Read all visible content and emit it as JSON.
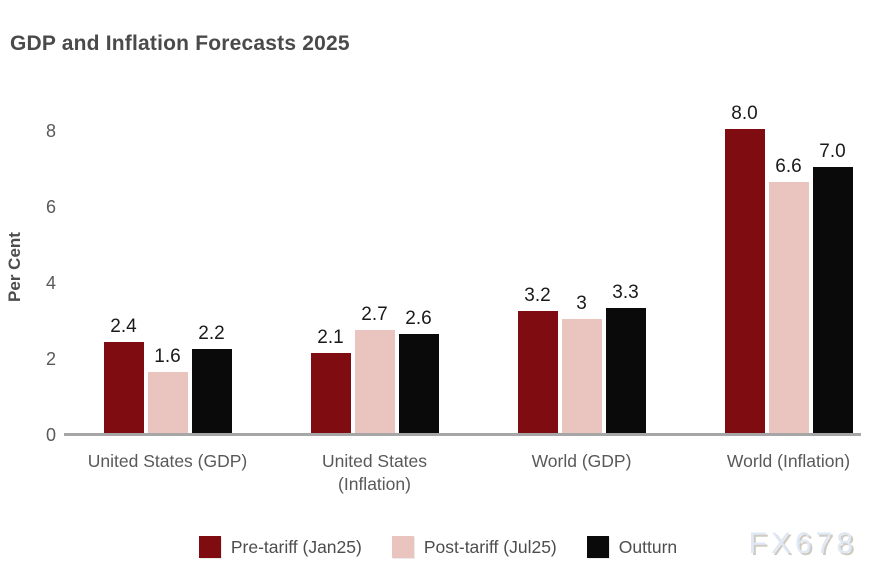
{
  "title": "GDP and Inflation Forecasts 2025",
  "watermark": "FX678",
  "colors": {
    "axis_line": "#a6a6a6",
    "tick_text": "#595959",
    "title_text": "#4a4a4a",
    "value_label_text": "#1a1a1a",
    "pre_tariff": "#7f0c10",
    "post_tariff": "#eac5bf",
    "outturn": "#0a0a0a",
    "watermark": "#dfe8f4"
  },
  "chart_data": {
    "type": "bar",
    "title": "GDP and Inflation Forecasts 2025",
    "xlabel": "",
    "ylabel": "Per Cent",
    "ylim": [
      0,
      8
    ],
    "yticks": [
      0,
      2,
      4,
      6,
      8
    ],
    "grid": false,
    "legend_position": "bottom",
    "categories": [
      "United States (GDP)",
      "United States (Inflation)",
      "World (GDP)",
      "World (Inflation)"
    ],
    "series": [
      {
        "name": "Pre-tariff (Jan25)",
        "color": "#7f0c10",
        "values": [
          2.4,
          2.1,
          3.2,
          8.0
        ],
        "labels": [
          "2.4",
          "2.1",
          "3.2",
          "8.0"
        ]
      },
      {
        "name": "Post-tariff (Jul25)",
        "color": "#eac5bf",
        "values": [
          1.6,
          2.7,
          3.0,
          6.6
        ],
        "labels": [
          "1.6",
          "2.7",
          "3",
          "6.6"
        ]
      },
      {
        "name": "Outturn",
        "color": "#0a0a0a",
        "values": [
          2.2,
          2.6,
          3.3,
          7.0
        ],
        "labels": [
          "2.2",
          "2.6",
          "3.3",
          "7.0"
        ]
      }
    ]
  }
}
